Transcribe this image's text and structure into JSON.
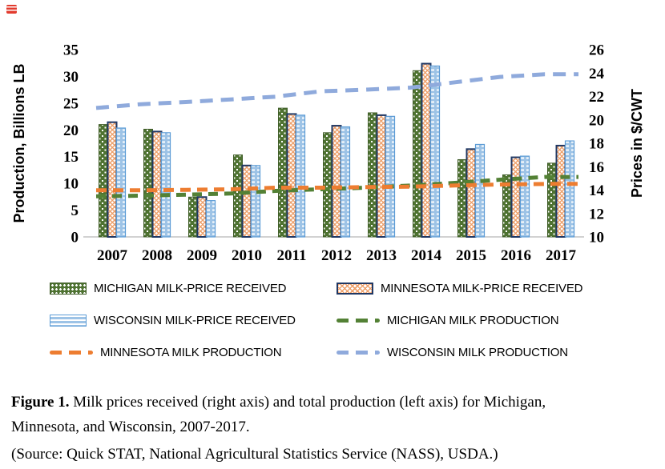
{
  "page": {
    "background": "#ffffff"
  },
  "corner_icon": {
    "name": "red-placeholder-icon",
    "color": "#e23b2e"
  },
  "chart_data": {
    "type": "bar+line combo",
    "title": "",
    "categories": [
      "2007",
      "2008",
      "2009",
      "2010",
      "2011",
      "2012",
      "2013",
      "2014",
      "2015",
      "2016",
      "2017"
    ],
    "left_axis": {
      "label": "Production, Billions LB",
      "range": [
        0,
        35
      ],
      "ticks": [
        0,
        5,
        10,
        15,
        20,
        25,
        30,
        35
      ]
    },
    "right_axis": {
      "label": "Prices in $/CWT",
      "range": [
        10,
        26
      ],
      "ticks": [
        10,
        12,
        14,
        16,
        18,
        20,
        22,
        24,
        26
      ]
    },
    "grid": "off",
    "legend_position": "bottom",
    "bar_series": [
      {
        "name": "MICHIGAN MILK-PRICE RECEIVED",
        "axis": "right",
        "unit": "$/CWT",
        "pattern": "green-dotted",
        "color": "#4e7231",
        "values": [
          19.6,
          19.2,
          13.4,
          17.0,
          21.0,
          18.9,
          20.6,
          24.2,
          16.6,
          15.3,
          16.3
        ]
      },
      {
        "name": "MINNESOTA MILK-PRICE RECEIVED",
        "axis": "right",
        "unit": "$/CWT",
        "pattern": "orange-lattice",
        "color": "#eda06b",
        "border_color": "#203864",
        "values": [
          19.8,
          19.0,
          13.4,
          16.1,
          20.5,
          19.5,
          20.4,
          24.8,
          17.5,
          16.8,
          17.8
        ]
      },
      {
        "name": "WISCONSIN MILK-PRICE RECEIVED",
        "axis": "right",
        "unit": "$/CWT",
        "pattern": "blue-striped",
        "color": "#9dc3e6",
        "border_color": "#5b9bd5",
        "values": [
          19.3,
          18.9,
          13.1,
          16.1,
          20.4,
          19.4,
          20.3,
          24.6,
          17.9,
          16.9,
          18.2
        ]
      }
    ],
    "line_series": [
      {
        "name": "MICHIGAN MILK PRODUCTION",
        "axis": "left",
        "unit": "billions lb",
        "style": "dashed",
        "color": "#538135",
        "values": [
          7.6,
          7.7,
          7.9,
          8.1,
          8.6,
          8.9,
          9.2,
          9.6,
          10.1,
          10.7,
          11.2
        ]
      },
      {
        "name": "MINNESOTA MILK PRODUCTION",
        "axis": "left",
        "unit": "billions lb",
        "style": "dashed",
        "color": "#ed7d31",
        "values": [
          8.7,
          8.7,
          8.8,
          8.9,
          9.2,
          9.2,
          9.3,
          9.4,
          9.6,
          9.8,
          9.9
        ]
      },
      {
        "name": "WISCONSIN MILK PRODUCTION",
        "axis": "left",
        "unit": "billions lb",
        "style": "dashed",
        "color": "#8faadc",
        "values": [
          24.1,
          24.8,
          25.2,
          25.7,
          26.2,
          27.2,
          27.5,
          27.9,
          28.9,
          29.9,
          30.4
        ]
      }
    ]
  },
  "legend": {
    "items": [
      {
        "label": "MICHIGAN MILK-PRICE RECEIVED",
        "swatch": "green-pattern-bar"
      },
      {
        "label": "MINNESOTA MILK-PRICE RECEIVED",
        "swatch": "orange-pattern-bar"
      },
      {
        "label": "WISCONSIN MILK-PRICE RECEIVED",
        "swatch": "blue-pattern-bar"
      },
      {
        "label": "MICHIGAN MILK PRODUCTION",
        "swatch": "green-dashes"
      },
      {
        "label": "MINNESOTA MILK PRODUCTION",
        "swatch": "orange-dashes"
      },
      {
        "label": "WISCONSIN MILK PRODUCTION",
        "swatch": "blue-dashes"
      }
    ]
  },
  "caption": {
    "label": "Figure 1.",
    "text": " Milk prices received (right axis) and total production (left axis) for Michigan, Minnesota, and Wisconsin, 2007-2017.",
    "source": "(Source: Quick STAT, National Agricultural Statistics Service (NASS), USDA.)"
  }
}
